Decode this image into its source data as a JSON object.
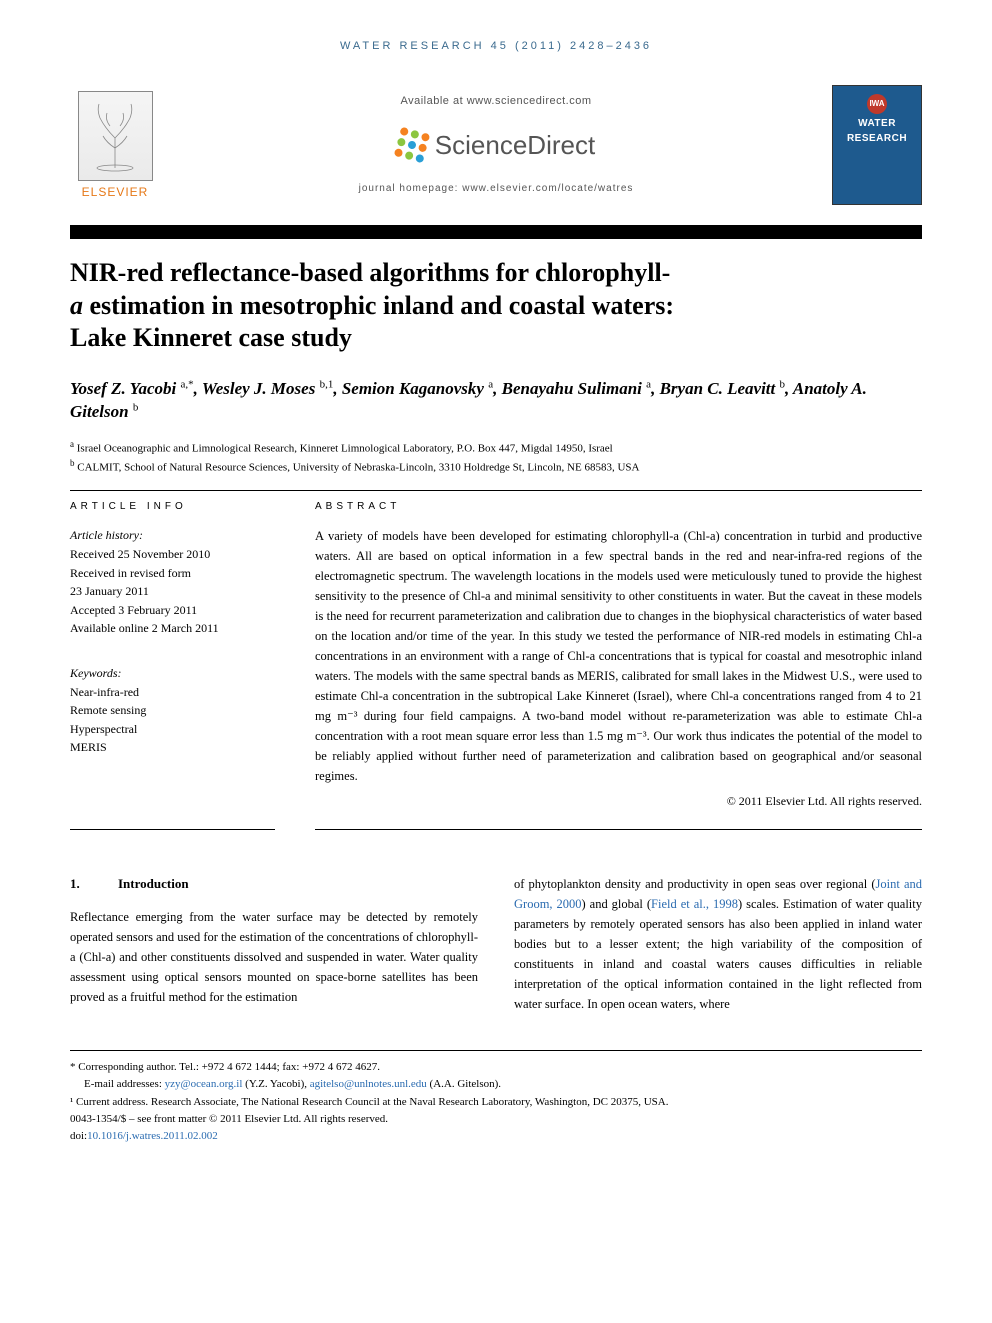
{
  "running_header": "WATER RESEARCH 45 (2011) 2428–2436",
  "banner": {
    "available_at": "Available at www.sciencedirect.com",
    "scidir_word": "ScienceDirect",
    "journal_homepage": "journal homepage: www.elsevier.com/locate/watres",
    "elsevier": "ELSEVIER",
    "cover_badge": "IWA",
    "cover_line1": "WATER",
    "cover_line2": "RESEARCH",
    "scidir_dot_colors": [
      "#f58220",
      "#8cc63f",
      "#f58220",
      "#8cc63f",
      "#2a9fd6",
      "#f58220",
      "#f58220",
      "#8cc63f",
      "#2a9fd6"
    ]
  },
  "title_lines": [
    "NIR-red reflectance-based algorithms for chlorophyll-",
    "a estimation in mesotrophic inland and coastal waters:",
    "Lake Kinneret case study"
  ],
  "authors_html": "Yosef Z. Yacobi <sup>a,*</sup>, Wesley J. Moses <sup>b,1</sup>, Semion Kaganovsky <sup>a</sup>, Benayahu Sulimani <sup>a</sup>, Bryan C. Leavitt <sup>b</sup>, Anatoly A. Gitelson <sup>b</sup>",
  "affiliations": [
    {
      "sup": "a",
      "text": "Israel Oceanographic and Limnological Research, Kinneret Limnological Laboratory, P.O. Box 447, Migdal 14950, Israel"
    },
    {
      "sup": "b",
      "text": "CALMIT, School of Natural Resource Sciences, University of Nebraska-Lincoln, 3310 Holdredge St, Lincoln, NE 68583, USA"
    }
  ],
  "labels": {
    "article_info": "ARTICLE INFO",
    "abstract": "ABSTRACT"
  },
  "history": {
    "head": "Article history:",
    "items": [
      "Received 25 November 2010",
      "Received in revised form",
      "23 January 2011",
      "Accepted 3 February 2011",
      "Available online 2 March 2011"
    ]
  },
  "keywords": {
    "head": "Keywords:",
    "items": [
      "Near-infra-red",
      "Remote sensing",
      "Hyperspectral",
      "MERIS"
    ]
  },
  "abstract": "A variety of models have been developed for estimating chlorophyll-a (Chl-a) concentration in turbid and productive waters. All are based on optical information in a few spectral bands in the red and near-infra-red regions of the electromagnetic spectrum. The wavelength locations in the models used were meticulously tuned to provide the highest sensitivity to the presence of Chl-a and minimal sensitivity to other constituents in water. But the caveat in these models is the need for recurrent parameterization and calibration due to changes in the biophysical characteristics of water based on the location and/or time of the year. In this study we tested the performance of NIR-red models in estimating Chl-a concentrations in an environment with a range of Chl-a concentrations that is typical for coastal and mesotrophic inland waters. The models with the same spectral bands as MERIS, calibrated for small lakes in the Midwest U.S., were used to estimate Chl-a concentration in the subtropical Lake Kinneret (Israel), where Chl-a concentrations ranged from 4 to 21 mg m⁻³ during four field campaigns. A two-band model without re-parameterization was able to estimate Chl-a concentration with a root mean square error less than 1.5 mg m⁻³. Our work thus indicates the potential of the model to be reliably applied without further need of parameterization and calibration based on geographical and/or seasonal regimes.",
  "copyright": "© 2011 Elsevier Ltd. All rights reserved.",
  "section1": {
    "num": "1.",
    "head": "Introduction",
    "col1": "Reflectance emerging from the water surface may be detected by remotely operated sensors and used for the estimation of the concentrations of chlorophyll-a (Chl-a) and other constituents dissolved and suspended in water. Water quality assessment using optical sensors mounted on space-borne satellites has been proved as a fruitful method for the estimation",
    "col2_pre": "of phytoplankton density and productivity in open seas over regional (",
    "col2_link1": "Joint and Groom, 2000",
    "col2_mid1": ") and global (",
    "col2_link2": "Field et al., 1998",
    "col2_post": ") scales. Estimation of water quality parameters by remotely operated sensors has also been applied in inland water bodies but to a lesser extent; the high variability of the composition of constituents in inland and coastal waters causes difficulties in reliable interpretation of the optical information contained in the light reflected from water surface. In open ocean waters, where"
  },
  "footer": {
    "corr": "* Corresponding author. Tel.: +972 4 672 1444; fax: +972 4 672 4627.",
    "emails_pre": "E-mail addresses: ",
    "email1": "yzy@ocean.org.il",
    "email1_who": " (Y.Z. Yacobi), ",
    "email2": "agitelso@unlnotes.unl.edu",
    "email2_who": " (A.A. Gitelson).",
    "note1": "¹ Current address. Research Associate, The National Research Council at the Naval Research Laboratory, Washington, DC 20375, USA.",
    "issn": "0043-1354/$ – see front matter © 2011 Elsevier Ltd. All rights reserved.",
    "doi_label": "doi:",
    "doi": "10.1016/j.watres.2011.02.002"
  }
}
